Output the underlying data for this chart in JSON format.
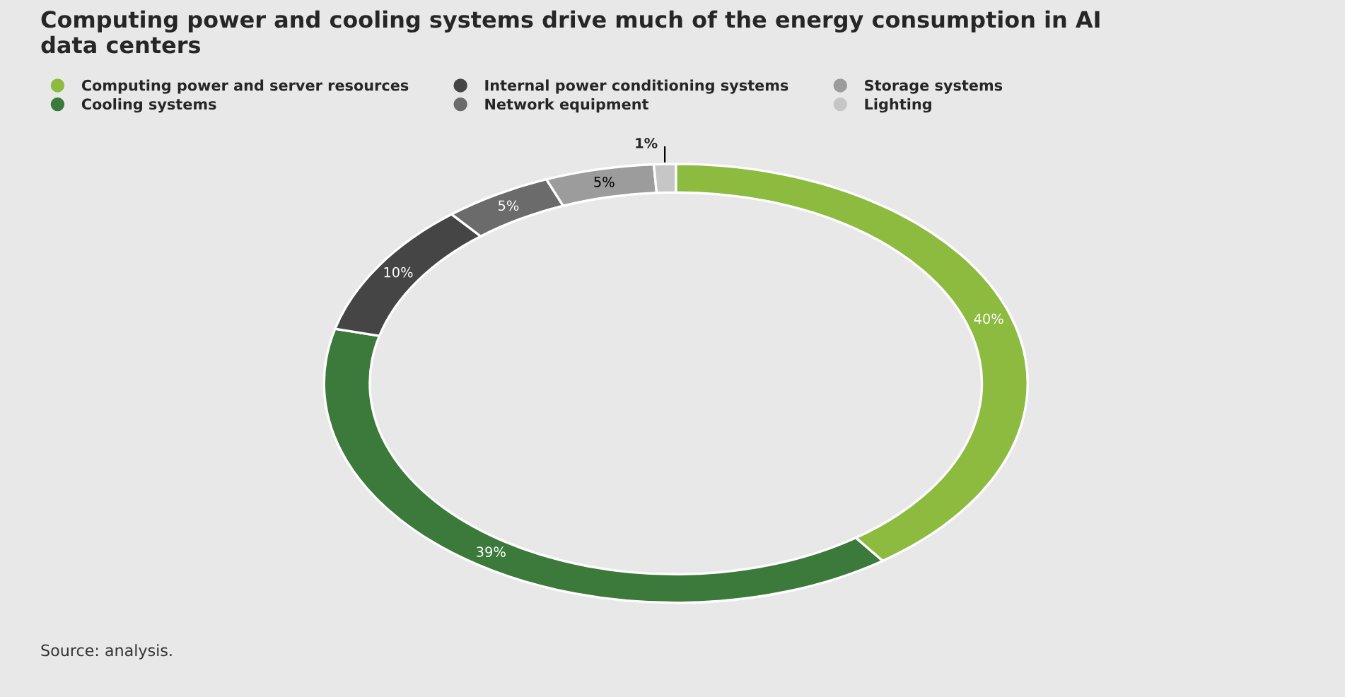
{
  "chart_data": {
    "type": "donut",
    "title": "Computing power and cooling systems drive much of the energy consumption in AI\ndata centers",
    "categories": [
      "Computing power and server resources",
      "Cooling systems",
      "Internal power conditioning systems",
      "Network equipment",
      "Storage systems",
      "Lighting"
    ],
    "values": [
      40,
      39,
      10,
      5,
      5,
      1
    ],
    "colors": [
      "#8dbb3f",
      "#3b7a3a",
      "#454545",
      "#6b6b6b",
      "#9c9c9c",
      "#c6c6c6"
    ],
    "value_labels": [
      "40%",
      "39%",
      "10%",
      "5%",
      "5%",
      "1%"
    ],
    "legend": "top left",
    "annotations": [
      "Source: analysis."
    ]
  }
}
